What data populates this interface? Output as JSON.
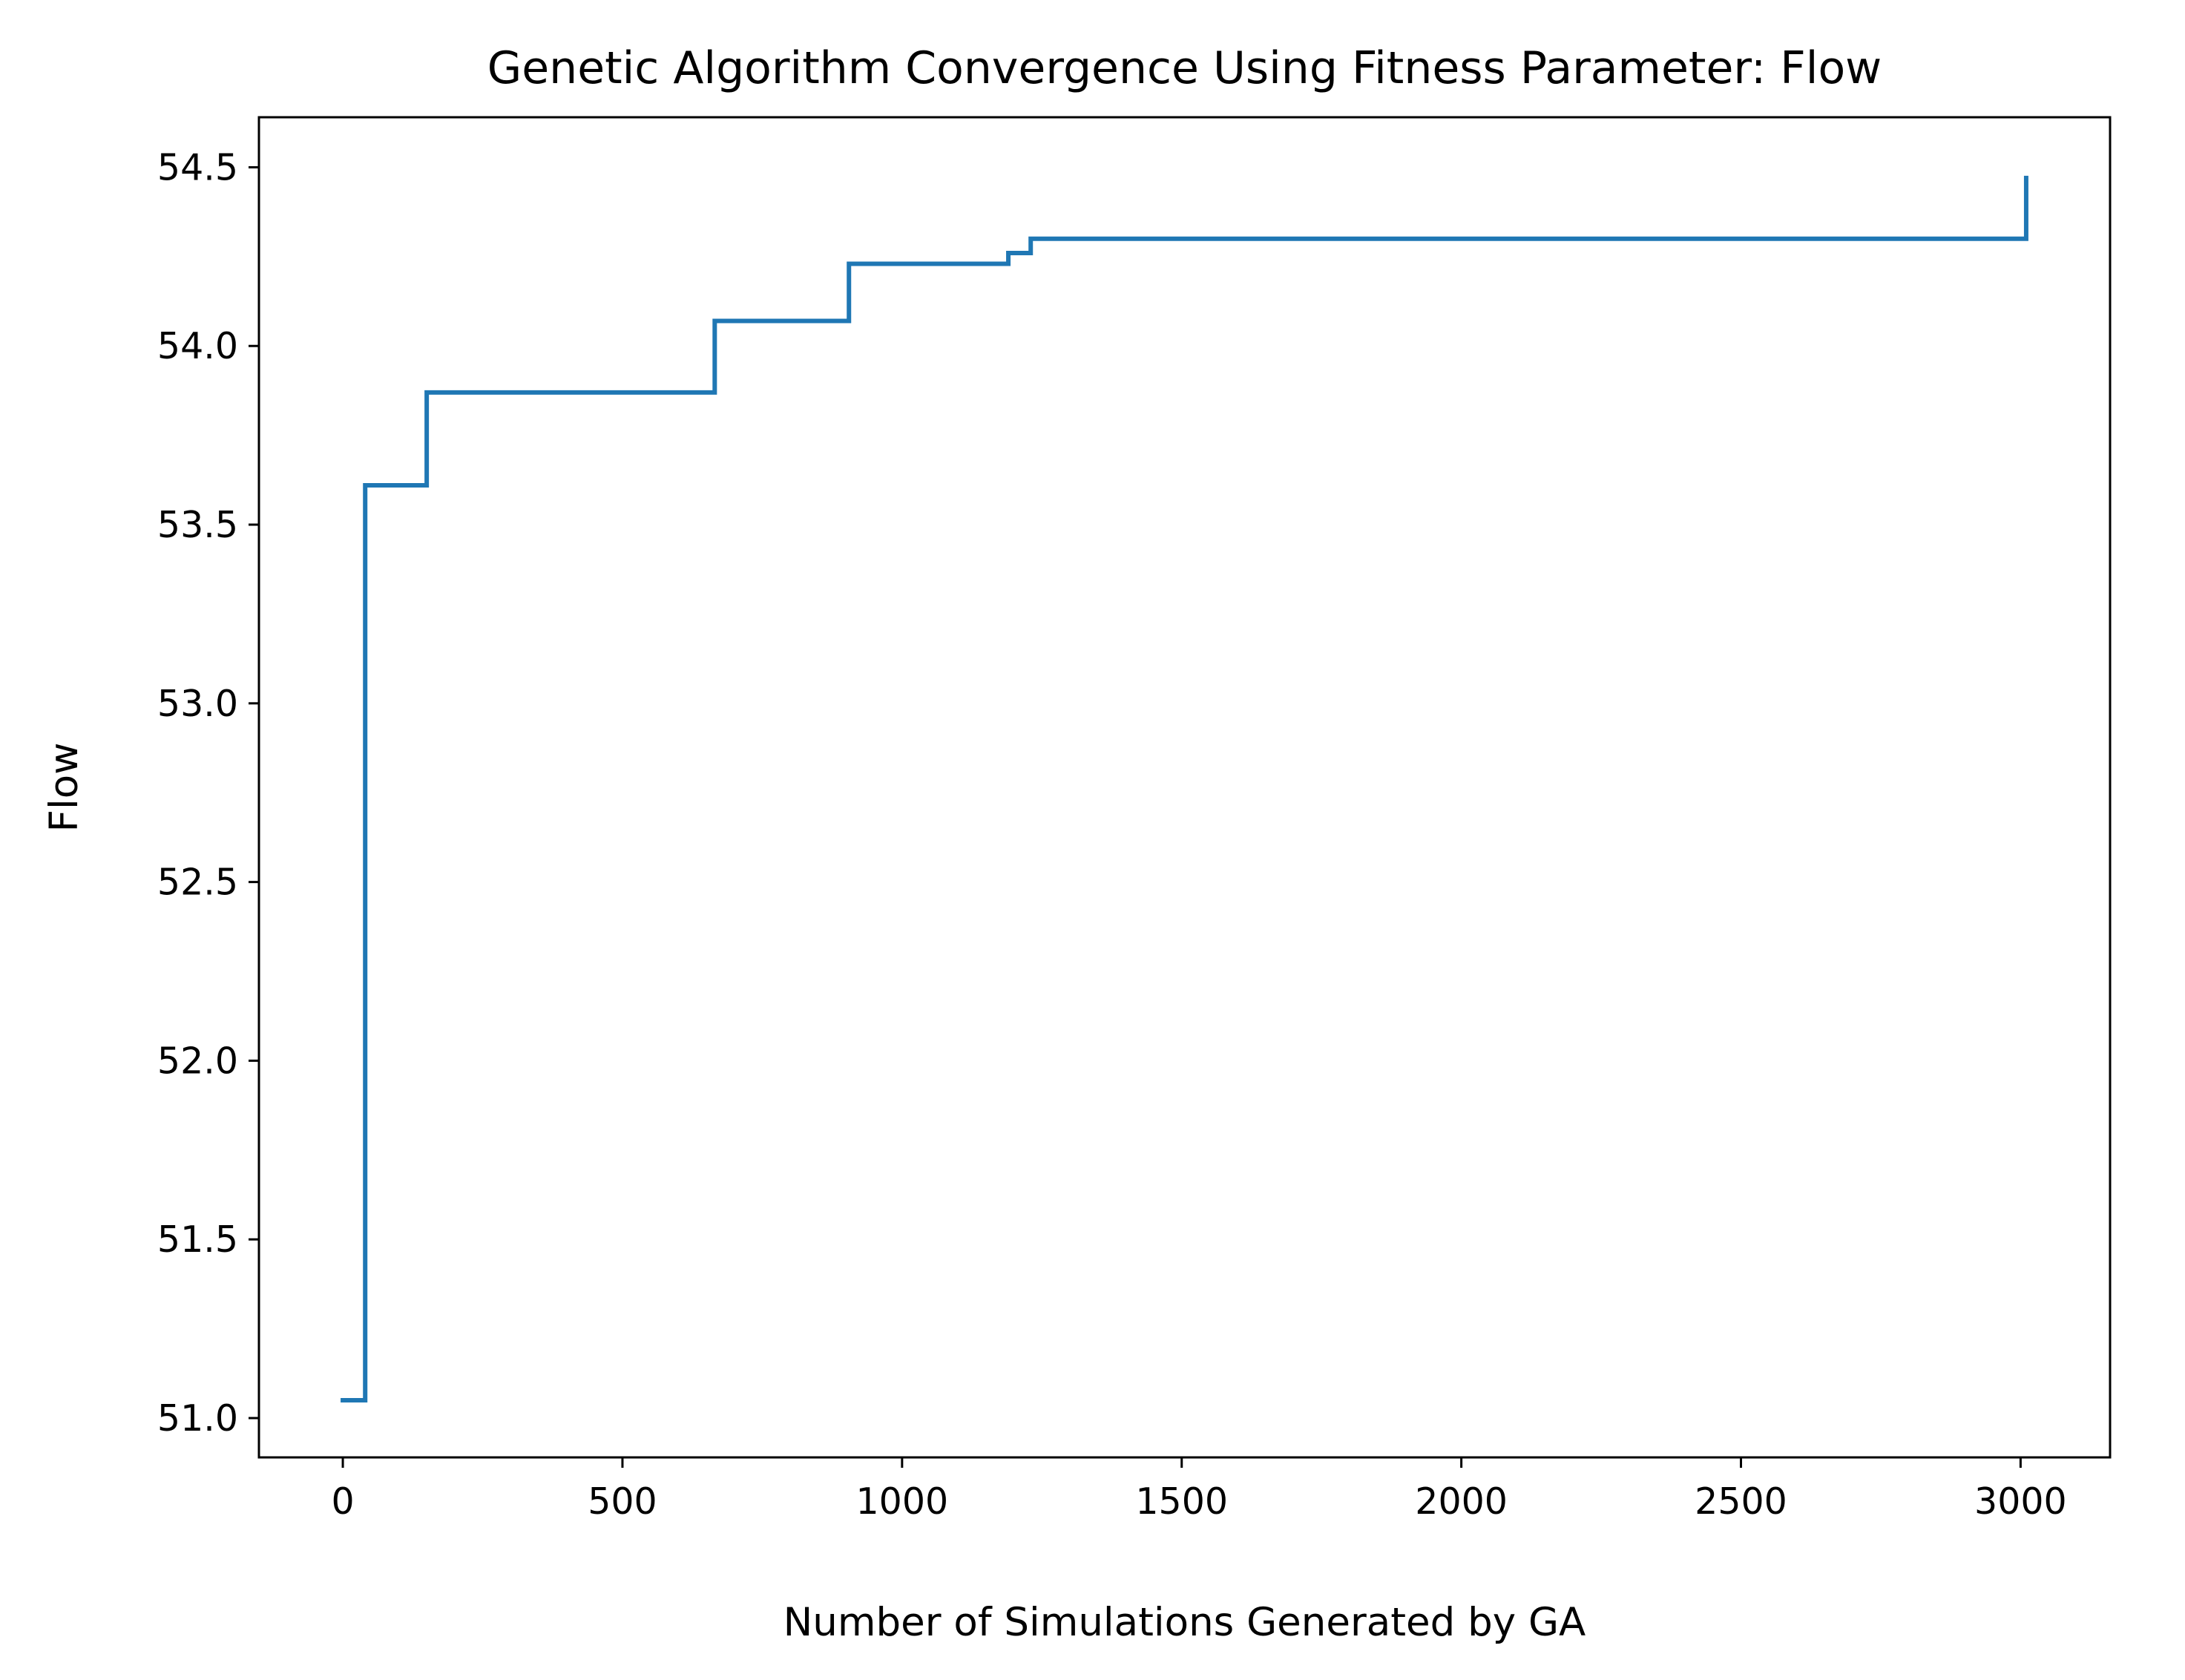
{
  "chart_data": {
    "type": "line",
    "title": "Genetic Algorithm Convergence Using Fitness Parameter: Flow",
    "xlabel": "Number of Simulations Generated by GA",
    "ylabel": "Flow",
    "xlim": [
      -150,
      3160
    ],
    "ylim": [
      50.89,
      54.64
    ],
    "xticks": [
      0,
      500,
      1000,
      1500,
      2000,
      2500,
      3000
    ],
    "xtick_labels": [
      "0",
      "500",
      "1000",
      "1500",
      "2000",
      "2500",
      "3000"
    ],
    "yticks": [
      51.0,
      51.5,
      52.0,
      52.5,
      53.0,
      53.5,
      54.0,
      54.5
    ],
    "ytick_labels": [
      "51.0",
      "51.5",
      "52.0",
      "52.5",
      "53.0",
      "53.5",
      "54.0",
      "54.5"
    ],
    "grid": false,
    "series": [
      {
        "color": "#1f77b4",
        "drawstyle": "steps-post",
        "x": [
          0,
          40,
          150,
          665,
          905,
          1190,
          1230,
          3010
        ],
        "y": [
          51.05,
          53.61,
          53.87,
          54.07,
          54.23,
          54.26,
          54.3,
          54.47
        ]
      }
    ]
  }
}
